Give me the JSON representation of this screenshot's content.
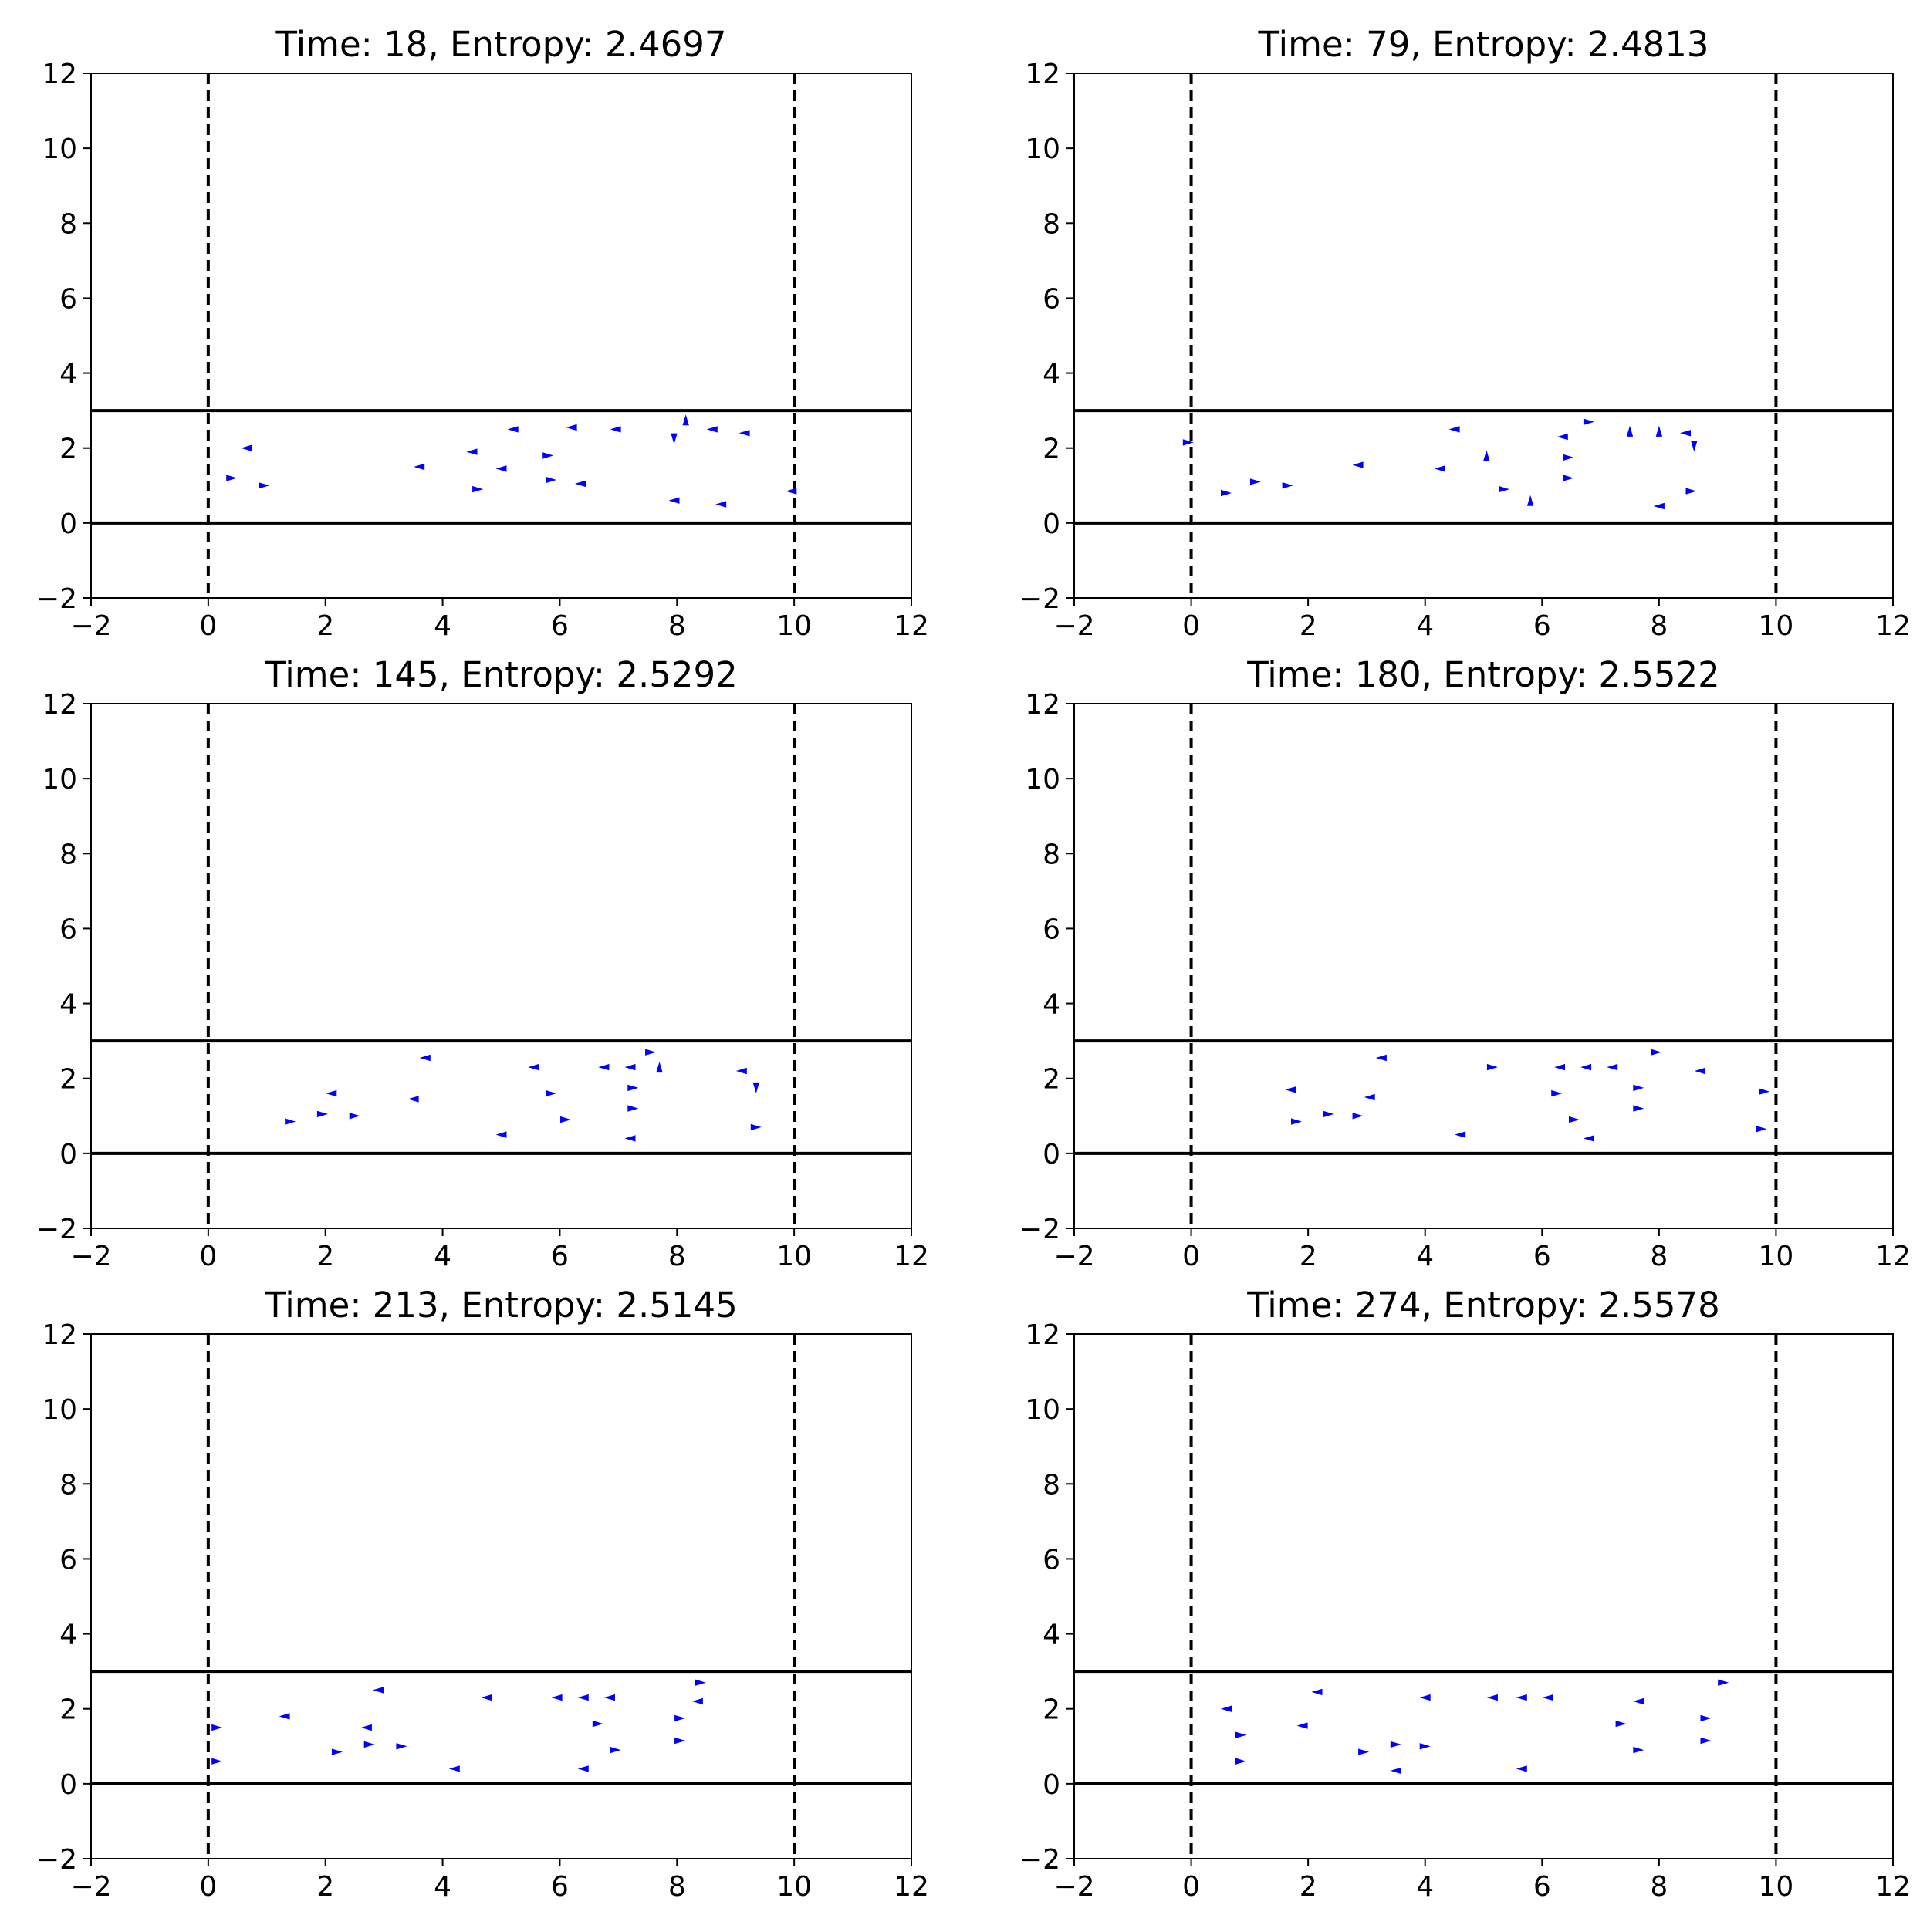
{
  "chart_data": [
    {
      "type": "scatter",
      "title": "Time: 18, Entropy: 2.4697",
      "xlim": [
        -2,
        12
      ],
      "ylim": [
        -2,
        12
      ],
      "xticks": [
        -2,
        0,
        2,
        4,
        6,
        8,
        10,
        12
      ],
      "yticks": [
        -2,
        0,
        2,
        4,
        6,
        8,
        10,
        12
      ],
      "hlines": [
        0,
        3
      ],
      "vlines": [
        0,
        10
      ],
      "marker": "triangle",
      "color": "#0000ff",
      "points": [
        {
          "x": 0.4,
          "y": 1.2,
          "dir": "right"
        },
        {
          "x": 0.65,
          "y": 2.0,
          "dir": "left"
        },
        {
          "x": 0.95,
          "y": 1.0,
          "dir": "right"
        },
        {
          "x": 3.6,
          "y": 1.5,
          "dir": "left"
        },
        {
          "x": 4.5,
          "y": 1.9,
          "dir": "left"
        },
        {
          "x": 4.6,
          "y": 0.9,
          "dir": "right"
        },
        {
          "x": 5.0,
          "y": 1.45,
          "dir": "left"
        },
        {
          "x": 5.2,
          "y": 2.5,
          "dir": "left"
        },
        {
          "x": 5.8,
          "y": 1.8,
          "dir": "right"
        },
        {
          "x": 5.85,
          "y": 1.15,
          "dir": "right"
        },
        {
          "x": 6.2,
          "y": 2.55,
          "dir": "left"
        },
        {
          "x": 6.35,
          "y": 1.05,
          "dir": "left"
        },
        {
          "x": 6.95,
          "y": 2.5,
          "dir": "left"
        },
        {
          "x": 7.95,
          "y": 2.25,
          "dir": "down"
        },
        {
          "x": 7.95,
          "y": 0.6,
          "dir": "left"
        },
        {
          "x": 8.15,
          "y": 2.75,
          "dir": "up"
        },
        {
          "x": 8.6,
          "y": 2.5,
          "dir": "left"
        },
        {
          "x": 8.75,
          "y": 0.5,
          "dir": "left"
        },
        {
          "x": 9.15,
          "y": 2.4,
          "dir": "left"
        },
        {
          "x": 9.95,
          "y": 0.85,
          "dir": "left"
        }
      ]
    },
    {
      "type": "scatter",
      "title": "Time: 79, Entropy: 2.4813",
      "xlim": [
        -2,
        12
      ],
      "ylim": [
        -2,
        12
      ],
      "xticks": [
        -2,
        0,
        2,
        4,
        6,
        8,
        10,
        12
      ],
      "yticks": [
        -2,
        0,
        2,
        4,
        6,
        8,
        10,
        12
      ],
      "hlines": [
        0,
        3
      ],
      "vlines": [
        0,
        10
      ],
      "marker": "triangle",
      "color": "#0000ff",
      "points": [
        {
          "x": -0.05,
          "y": 2.15,
          "dir": "right"
        },
        {
          "x": 0.6,
          "y": 0.8,
          "dir": "right"
        },
        {
          "x": 1.1,
          "y": 1.1,
          "dir": "right"
        },
        {
          "x": 1.65,
          "y": 1.0,
          "dir": "right"
        },
        {
          "x": 2.85,
          "y": 1.55,
          "dir": "left"
        },
        {
          "x": 4.25,
          "y": 1.45,
          "dir": "left"
        },
        {
          "x": 4.5,
          "y": 2.5,
          "dir": "left"
        },
        {
          "x": 5.05,
          "y": 1.8,
          "dir": "up"
        },
        {
          "x": 5.35,
          "y": 0.9,
          "dir": "right"
        },
        {
          "x": 5.8,
          "y": 0.6,
          "dir": "up"
        },
        {
          "x": 6.35,
          "y": 2.3,
          "dir": "left"
        },
        {
          "x": 6.45,
          "y": 1.75,
          "dir": "right"
        },
        {
          "x": 6.45,
          "y": 1.2,
          "dir": "right"
        },
        {
          "x": 6.8,
          "y": 2.7,
          "dir": "right"
        },
        {
          "x": 7.5,
          "y": 2.45,
          "dir": "up"
        },
        {
          "x": 8.0,
          "y": 2.45,
          "dir": "up"
        },
        {
          "x": 8.0,
          "y": 0.45,
          "dir": "left"
        },
        {
          "x": 8.45,
          "y": 2.4,
          "dir": "left"
        },
        {
          "x": 8.55,
          "y": 0.85,
          "dir": "right"
        },
        {
          "x": 8.6,
          "y": 2.05,
          "dir": "down"
        }
      ]
    },
    {
      "type": "scatter",
      "title": "Time: 145, Entropy: 2.5292",
      "xlim": [
        -2,
        12
      ],
      "ylim": [
        -2,
        12
      ],
      "xticks": [
        -2,
        0,
        2,
        4,
        6,
        8,
        10,
        12
      ],
      "yticks": [
        -2,
        0,
        2,
        4,
        6,
        8,
        10,
        12
      ],
      "hlines": [
        0,
        3
      ],
      "vlines": [
        0,
        10
      ],
      "marker": "triangle",
      "color": "#0000ff",
      "points": [
        {
          "x": 1.4,
          "y": 0.85,
          "dir": "right"
        },
        {
          "x": 1.95,
          "y": 1.05,
          "dir": "right"
        },
        {
          "x": 2.1,
          "y": 1.6,
          "dir": "left"
        },
        {
          "x": 2.5,
          "y": 1.0,
          "dir": "right"
        },
        {
          "x": 3.5,
          "y": 1.45,
          "dir": "left"
        },
        {
          "x": 3.7,
          "y": 2.55,
          "dir": "left"
        },
        {
          "x": 5.0,
          "y": 0.5,
          "dir": "left"
        },
        {
          "x": 5.55,
          "y": 2.3,
          "dir": "left"
        },
        {
          "x": 5.85,
          "y": 1.6,
          "dir": "right"
        },
        {
          "x": 6.1,
          "y": 0.9,
          "dir": "right"
        },
        {
          "x": 6.75,
          "y": 2.3,
          "dir": "left"
        },
        {
          "x": 7.2,
          "y": 2.3,
          "dir": "left"
        },
        {
          "x": 7.25,
          "y": 1.75,
          "dir": "right"
        },
        {
          "x": 7.25,
          "y": 1.2,
          "dir": "right"
        },
        {
          "x": 7.2,
          "y": 0.4,
          "dir": "left"
        },
        {
          "x": 7.55,
          "y": 2.7,
          "dir": "right"
        },
        {
          "x": 7.7,
          "y": 2.3,
          "dir": "up"
        },
        {
          "x": 9.1,
          "y": 2.2,
          "dir": "left"
        },
        {
          "x": 9.35,
          "y": 1.75,
          "dir": "down"
        },
        {
          "x": 9.35,
          "y": 0.7,
          "dir": "right"
        }
      ]
    },
    {
      "type": "scatter",
      "title": "Time: 180, Entropy: 2.5522",
      "xlim": [
        -2,
        12
      ],
      "ylim": [
        -2,
        12
      ],
      "xticks": [
        -2,
        0,
        2,
        4,
        6,
        8,
        10,
        12
      ],
      "yticks": [
        -2,
        0,
        2,
        4,
        6,
        8,
        10,
        12
      ],
      "hlines": [
        0,
        3
      ],
      "vlines": [
        0,
        10
      ],
      "marker": "triangle",
      "color": "#0000ff",
      "points": [
        {
          "x": 1.7,
          "y": 1.7,
          "dir": "left"
        },
        {
          "x": 1.8,
          "y": 0.85,
          "dir": "right"
        },
        {
          "x": 2.35,
          "y": 1.05,
          "dir": "right"
        },
        {
          "x": 2.85,
          "y": 1.0,
          "dir": "right"
        },
        {
          "x": 3.05,
          "y": 1.5,
          "dir": "left"
        },
        {
          "x": 3.25,
          "y": 2.55,
          "dir": "left"
        },
        {
          "x": 4.6,
          "y": 0.5,
          "dir": "left"
        },
        {
          "x": 5.15,
          "y": 2.3,
          "dir": "right"
        },
        {
          "x": 6.25,
          "y": 1.6,
          "dir": "right"
        },
        {
          "x": 6.3,
          "y": 2.3,
          "dir": "left"
        },
        {
          "x": 6.55,
          "y": 0.9,
          "dir": "right"
        },
        {
          "x": 6.75,
          "y": 2.3,
          "dir": "left"
        },
        {
          "x": 6.8,
          "y": 0.4,
          "dir": "left"
        },
        {
          "x": 7.2,
          "y": 2.3,
          "dir": "left"
        },
        {
          "x": 7.65,
          "y": 1.75,
          "dir": "right"
        },
        {
          "x": 7.65,
          "y": 1.2,
          "dir": "right"
        },
        {
          "x": 7.95,
          "y": 2.7,
          "dir": "right"
        },
        {
          "x": 8.7,
          "y": 2.2,
          "dir": "left"
        },
        {
          "x": 9.8,
          "y": 1.65,
          "dir": "right"
        },
        {
          "x": 9.75,
          "y": 0.65,
          "dir": "right"
        }
      ]
    },
    {
      "type": "scatter",
      "title": "Time: 213, Entropy: 2.5145",
      "xlim": [
        -2,
        12
      ],
      "ylim": [
        -2,
        12
      ],
      "xticks": [
        -2,
        0,
        2,
        4,
        6,
        8,
        10,
        12
      ],
      "yticks": [
        -2,
        0,
        2,
        4,
        6,
        8,
        10,
        12
      ],
      "hlines": [
        0,
        3
      ],
      "vlines": [
        0,
        10
      ],
      "marker": "triangle",
      "color": "#0000ff",
      "points": [
        {
          "x": 0.15,
          "y": 1.5,
          "dir": "right"
        },
        {
          "x": 0.15,
          "y": 0.6,
          "dir": "right"
        },
        {
          "x": 1.3,
          "y": 1.8,
          "dir": "left"
        },
        {
          "x": 2.2,
          "y": 0.85,
          "dir": "right"
        },
        {
          "x": 2.7,
          "y": 1.5,
          "dir": "left"
        },
        {
          "x": 2.75,
          "y": 1.05,
          "dir": "right"
        },
        {
          "x": 2.9,
          "y": 2.5,
          "dir": "left"
        },
        {
          "x": 3.3,
          "y": 1.0,
          "dir": "right"
        },
        {
          "x": 4.2,
          "y": 0.4,
          "dir": "left"
        },
        {
          "x": 4.75,
          "y": 2.3,
          "dir": "left"
        },
        {
          "x": 5.95,
          "y": 2.3,
          "dir": "left"
        },
        {
          "x": 6.4,
          "y": 2.3,
          "dir": "left"
        },
        {
          "x": 6.4,
          "y": 0.4,
          "dir": "left"
        },
        {
          "x": 6.65,
          "y": 1.6,
          "dir": "right"
        },
        {
          "x": 6.85,
          "y": 2.3,
          "dir": "left"
        },
        {
          "x": 6.95,
          "y": 0.9,
          "dir": "right"
        },
        {
          "x": 8.05,
          "y": 1.75,
          "dir": "right"
        },
        {
          "x": 8.05,
          "y": 1.15,
          "dir": "right"
        },
        {
          "x": 8.35,
          "y": 2.2,
          "dir": "left"
        },
        {
          "x": 8.4,
          "y": 2.7,
          "dir": "right"
        }
      ]
    },
    {
      "type": "scatter",
      "title": "Time: 274, Entropy: 2.5578",
      "xlim": [
        -2,
        12
      ],
      "ylim": [
        -2,
        12
      ],
      "xticks": [
        -2,
        0,
        2,
        4,
        6,
        8,
        10,
        12
      ],
      "yticks": [
        -2,
        0,
        2,
        4,
        6,
        8,
        10,
        12
      ],
      "hlines": [
        0,
        3
      ],
      "vlines": [
        0,
        10
      ],
      "marker": "triangle",
      "color": "#0000ff",
      "points": [
        {
          "x": 0.6,
          "y": 2.0,
          "dir": "left"
        },
        {
          "x": 0.85,
          "y": 1.3,
          "dir": "right"
        },
        {
          "x": 0.85,
          "y": 0.6,
          "dir": "right"
        },
        {
          "x": 1.9,
          "y": 1.55,
          "dir": "left"
        },
        {
          "x": 2.15,
          "y": 2.45,
          "dir": "left"
        },
        {
          "x": 2.95,
          "y": 0.85,
          "dir": "right"
        },
        {
          "x": 3.5,
          "y": 1.05,
          "dir": "right"
        },
        {
          "x": 3.5,
          "y": 0.35,
          "dir": "left"
        },
        {
          "x": 4.0,
          "y": 2.3,
          "dir": "left"
        },
        {
          "x": 4.0,
          "y": 1.0,
          "dir": "right"
        },
        {
          "x": 5.15,
          "y": 2.3,
          "dir": "left"
        },
        {
          "x": 5.65,
          "y": 2.3,
          "dir": "left"
        },
        {
          "x": 5.65,
          "y": 0.4,
          "dir": "left"
        },
        {
          "x": 6.1,
          "y": 2.3,
          "dir": "left"
        },
        {
          "x": 7.35,
          "y": 1.6,
          "dir": "right"
        },
        {
          "x": 7.65,
          "y": 2.2,
          "dir": "left"
        },
        {
          "x": 7.65,
          "y": 0.9,
          "dir": "right"
        },
        {
          "x": 8.8,
          "y": 1.75,
          "dir": "right"
        },
        {
          "x": 8.8,
          "y": 1.15,
          "dir": "right"
        },
        {
          "x": 9.1,
          "y": 2.7,
          "dir": "right"
        }
      ]
    }
  ]
}
